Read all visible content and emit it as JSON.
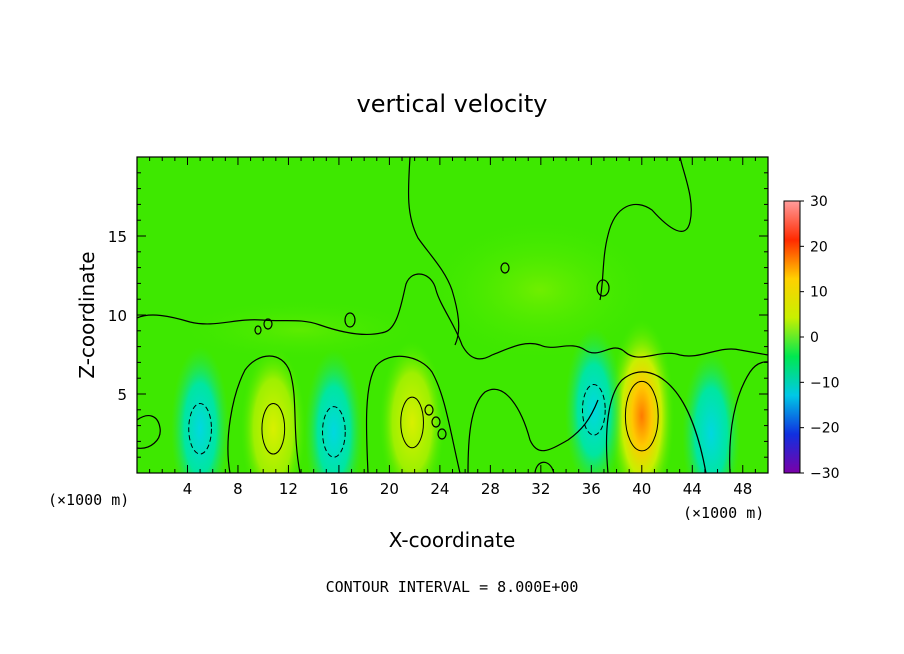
{
  "chart_data": {
    "type": "heatmap",
    "title": "vertical velocity",
    "xlabel": "X-coordinate",
    "ylabel": "Z-coordinate",
    "x_unit_left": "(×1000 m)",
    "x_unit_right": "(×1000 m)",
    "footer": "CONTOUR INTERVAL = 8.000E+00",
    "xlim": [
      0,
      50
    ],
    "ylim": [
      0,
      20
    ],
    "x_ticks": [
      4,
      8,
      12,
      16,
      20,
      24,
      28,
      32,
      36,
      40,
      44,
      48
    ],
    "y_ticks": [
      5,
      10,
      15
    ],
    "colorbar": {
      "range": [
        -30,
        30
      ],
      "ticks": [
        30,
        20,
        10,
        0,
        -10,
        -20,
        -30
      ],
      "tick_labels": [
        "30",
        "20",
        "10",
        "0",
        "−10",
        "−20",
        "−30"
      ],
      "colors": [
        "#7a00a8",
        "#1030e0",
        "#00c8e6",
        "#00e850",
        "#c8f000",
        "#ffd000",
        "#ff2a00",
        "#ff9c9c"
      ]
    },
    "contour_interval": 8.0,
    "features": [
      {
        "x": 40.0,
        "z": 3.6,
        "value": 18,
        "sign": "positive"
      },
      {
        "x": 21.8,
        "z": 3.2,
        "value": 10,
        "sign": "positive"
      },
      {
        "x": 10.8,
        "z": 2.8,
        "value": 8,
        "sign": "positive"
      },
      {
        "x": 5.0,
        "z": 2.8,
        "value": -9,
        "sign": "negative"
      },
      {
        "x": 15.6,
        "z": 2.6,
        "value": -10,
        "sign": "negative"
      },
      {
        "x": 36.2,
        "z": 4.0,
        "value": -8,
        "sign": "negative"
      },
      {
        "x": 45.5,
        "z": 2.5,
        "value": -6,
        "sign": "negative"
      }
    ]
  }
}
